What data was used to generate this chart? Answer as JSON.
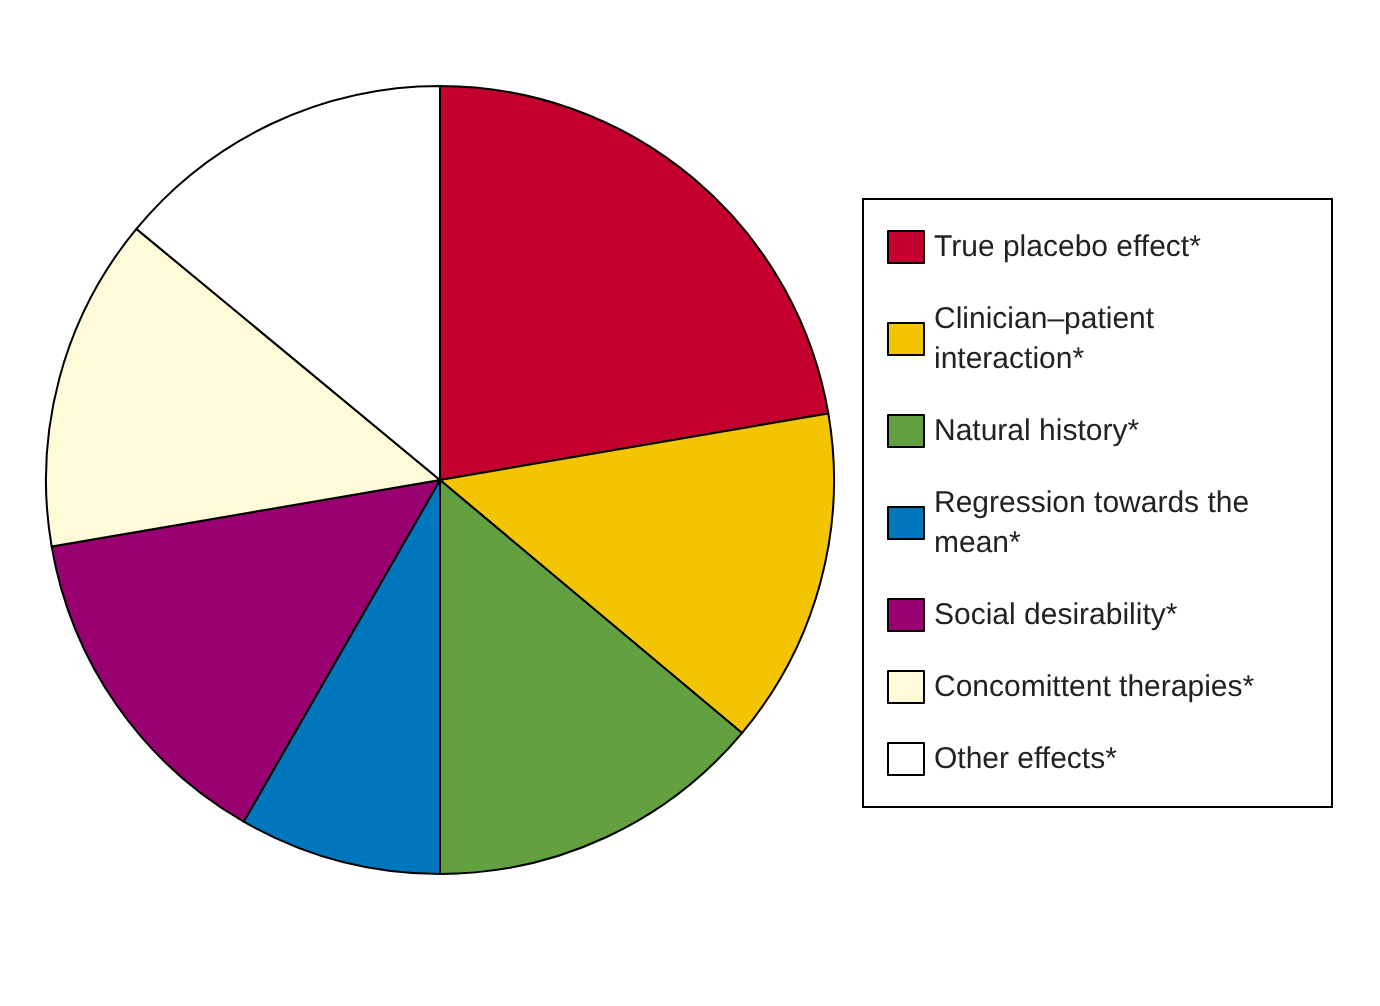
{
  "chart_data": {
    "type": "pie",
    "categories": [
      "True placebo effect*",
      "Clinician–patient interaction*",
      "Natural history*",
      "Regression towards the mean*",
      "Social desirability*",
      "Concomittent therapies*",
      "Other effects*"
    ],
    "values": [
      22.3,
      13.8,
      13.9,
      8.3,
      14.0,
      13.7,
      14.0
    ],
    "colors": [
      "#c4002f",
      "#f2c500",
      "#63a040",
      "#0077bd",
      "#990070",
      "#fffbd8",
      "#ffffff"
    ],
    "legend": "right"
  }
}
